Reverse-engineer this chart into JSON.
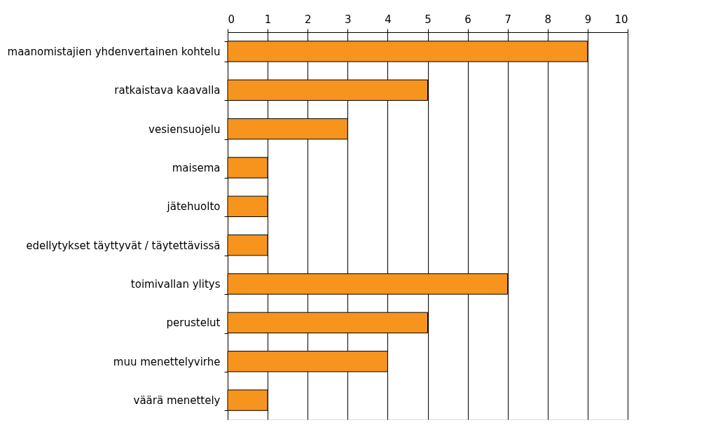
{
  "chart_data": {
    "type": "bar",
    "orientation": "horizontal",
    "categories": [
      "maanomistajien yhdenvertainen kohtelu",
      "ratkaistava kaavalla",
      "vesiensuojelu",
      "maisema",
      "jätehuolto",
      "edellytykset täyttyvät / täytettävissä",
      "toimivallan ylitys",
      "perustelut",
      "muu menettelyvirhe",
      "väärä menettely"
    ],
    "values": [
      9,
      5,
      3,
      1,
      1,
      1,
      7,
      5,
      4,
      1
    ],
    "color": "#f7941d",
    "xlim": [
      0,
      10
    ],
    "xticks": [
      0,
      1,
      2,
      3,
      4,
      5,
      6,
      7,
      8,
      9,
      10
    ],
    "grid": "x"
  }
}
